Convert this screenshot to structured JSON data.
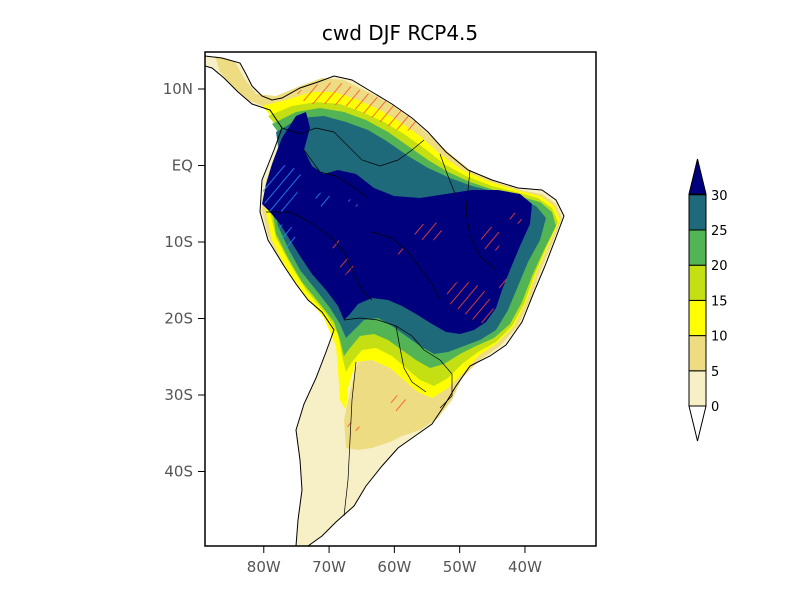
{
  "title": "cwd DJF RCP4.5",
  "lat_ticks": [
    {
      "lat": 10,
      "label": "10N"
    },
    {
      "lat": 0,
      "label": "EQ"
    },
    {
      "lat": -10,
      "label": "10S"
    },
    {
      "lat": -20,
      "label": "20S"
    },
    {
      "lat": -30,
      "label": "30S"
    },
    {
      "lat": -40,
      "label": "40S"
    }
  ],
  "lon_ticks": [
    {
      "lon": -80,
      "label": "80W"
    },
    {
      "lon": -70,
      "label": "70W"
    },
    {
      "lon": -60,
      "label": "60W"
    },
    {
      "lon": -50,
      "label": "50W"
    },
    {
      "lon": -40,
      "label": "40W"
    }
  ],
  "colorbar": {
    "levels": [
      "0",
      "5",
      "10",
      "15",
      "20",
      "25",
      "30"
    ],
    "colors": [
      "#ffffff",
      "#f7efc6",
      "#eedc82",
      "#ffff00",
      "#c4e012",
      "#52b455",
      "#1e6a7a",
      "#00007f"
    ]
  },
  "hatch_colors": {
    "increase": "#ff4a2a",
    "decrease": "#2a8fff"
  }
}
